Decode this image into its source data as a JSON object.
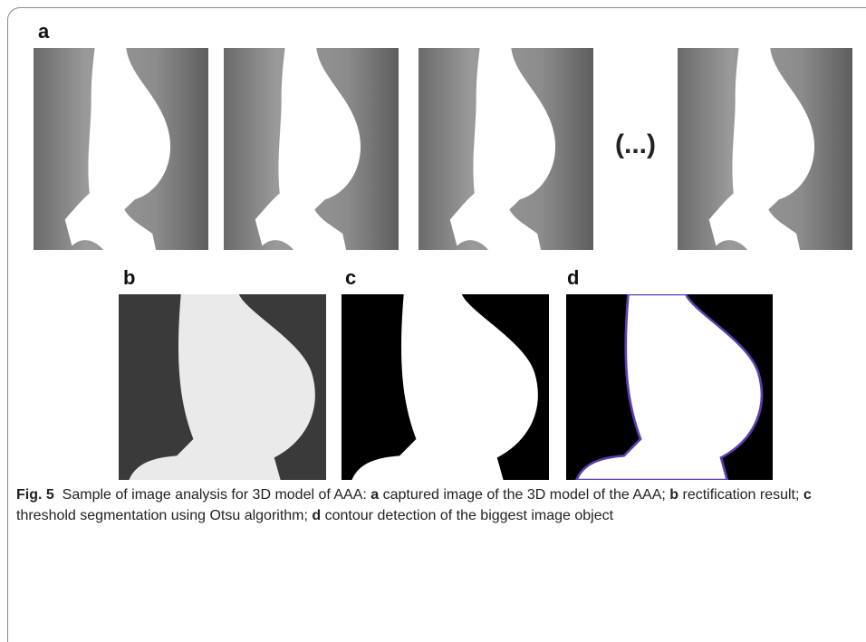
{
  "panel_labels": [
    "a",
    "b",
    "c",
    "d"
  ],
  "ellipsis": "(...)",
  "caption": {
    "label": "Fig. 5",
    "parts": [
      {
        "text": "Sample of image analysis for 3D model of AAA: ",
        "bold": false
      },
      {
        "text": "a",
        "bold": true
      },
      {
        "text": " captured image of the 3D model of the AAA; ",
        "bold": false
      },
      {
        "text": "b",
        "bold": true
      },
      {
        "text": " rectification result; ",
        "bold": false
      },
      {
        "text": "c",
        "bold": true
      },
      {
        "text": " threshold segmentation using Otsu algorithm; ",
        "bold": false
      },
      {
        "text": "d",
        "bold": true
      },
      {
        "text": " contour detection of the biggest image object",
        "bold": false
      }
    ]
  }
}
